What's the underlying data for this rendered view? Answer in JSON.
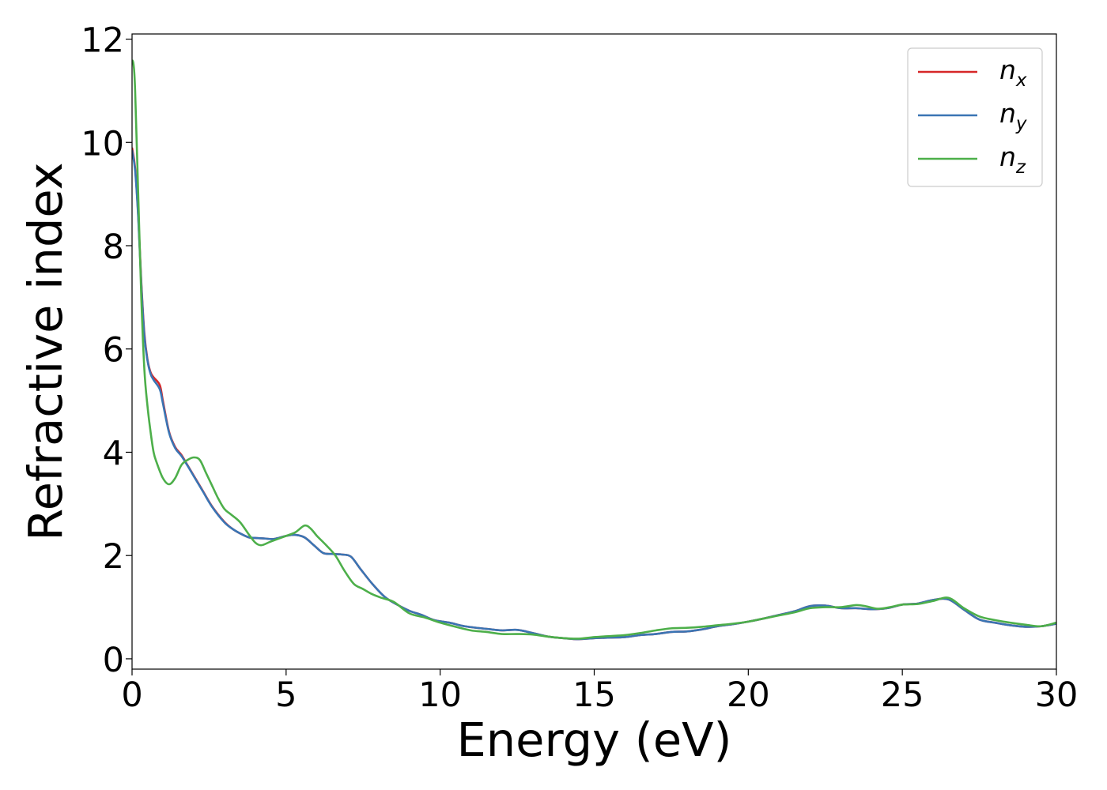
{
  "chart_data": {
    "type": "line",
    "xlabel": "Energy (eV)",
    "ylabel": "Refractive index",
    "xlim": [
      0,
      30
    ],
    "ylim": [
      -0.2,
      12.1
    ],
    "xticks": [
      "0",
      "5",
      "10",
      "15",
      "20",
      "25",
      "30"
    ],
    "yticks": [
      "0",
      "2",
      "4",
      "6",
      "8",
      "10",
      "12"
    ],
    "grid": false,
    "legend_position": "top-right",
    "series": [
      {
        "name": "n_x",
        "legend_base": "n",
        "legend_sub": "x",
        "color": "#d62728",
        "x": [
          0,
          0.1,
          0.2,
          0.3,
          0.4,
          0.5,
          0.6,
          0.7,
          0.9,
          1.0,
          1.2,
          1.4,
          1.6,
          1.8,
          2.0,
          2.3,
          2.6,
          3.0,
          3.3,
          3.6,
          3.8,
          4.0,
          4.3,
          4.6,
          5.0,
          5.3,
          5.6,
          5.9,
          6.2,
          6.5,
          6.8,
          7.1,
          7.4,
          7.8,
          8.2,
          8.6,
          9.0,
          9.4,
          9.8,
          10.3,
          10.8,
          11.5,
          12.0,
          12.5,
          13.0,
          13.5,
          14.0,
          14.5,
          15.0,
          15.5,
          16.0,
          16.5,
          17.0,
          17.5,
          18.0,
          18.5,
          19.0,
          19.5,
          20.0,
          20.5,
          21.0,
          21.5,
          22.0,
          22.5,
          23.0,
          23.5,
          24.0,
          24.5,
          25.0,
          25.5,
          26.0,
          26.5,
          27.0,
          27.5,
          28.0,
          28.5,
          29.0,
          29.5,
          30.0
        ],
        "y": [
          9.9,
          9.5,
          8.6,
          7.3,
          6.3,
          5.8,
          5.55,
          5.45,
          5.3,
          5.0,
          4.4,
          4.1,
          3.95,
          3.75,
          3.55,
          3.25,
          2.95,
          2.65,
          2.5,
          2.4,
          2.35,
          2.34,
          2.33,
          2.32,
          2.38,
          2.4,
          2.35,
          2.2,
          2.05,
          2.03,
          2.02,
          1.98,
          1.75,
          1.45,
          1.2,
          1.05,
          0.93,
          0.85,
          0.75,
          0.7,
          0.63,
          0.58,
          0.55,
          0.56,
          0.5,
          0.43,
          0.4,
          0.38,
          0.4,
          0.41,
          0.42,
          0.46,
          0.48,
          0.52,
          0.53,
          0.57,
          0.63,
          0.67,
          0.72,
          0.78,
          0.85,
          0.92,
          1.02,
          1.03,
          0.98,
          0.98,
          0.96,
          0.98,
          1.05,
          1.07,
          1.14,
          1.15,
          0.95,
          0.76,
          0.7,
          0.65,
          0.62,
          0.63,
          0.68
        ]
      },
      {
        "name": "n_y",
        "legend_base": "n",
        "legend_sub": "y",
        "color": "#3a75b4",
        "x": [
          0,
          0.1,
          0.2,
          0.3,
          0.4,
          0.5,
          0.6,
          0.7,
          0.9,
          1.0,
          1.2,
          1.4,
          1.6,
          1.8,
          2.0,
          2.3,
          2.6,
          3.0,
          3.3,
          3.6,
          3.8,
          4.0,
          4.3,
          4.6,
          5.0,
          5.3,
          5.6,
          5.9,
          6.2,
          6.5,
          6.8,
          7.1,
          7.4,
          7.8,
          8.2,
          8.6,
          9.0,
          9.4,
          9.8,
          10.3,
          10.8,
          11.5,
          12.0,
          12.5,
          13.0,
          13.5,
          14.0,
          14.5,
          15.0,
          15.5,
          16.0,
          16.5,
          17.0,
          17.5,
          18.0,
          18.5,
          19.0,
          19.5,
          20.0,
          20.5,
          21.0,
          21.5,
          22.0,
          22.5,
          23.0,
          23.5,
          24.0,
          24.5,
          25.0,
          25.5,
          26.0,
          26.5,
          27.0,
          27.5,
          28.0,
          28.5,
          29.0,
          29.5,
          30.0
        ],
        "y": [
          9.85,
          9.45,
          8.55,
          7.25,
          6.25,
          5.78,
          5.52,
          5.4,
          5.22,
          4.95,
          4.38,
          4.08,
          3.93,
          3.74,
          3.54,
          3.24,
          2.94,
          2.64,
          2.5,
          2.4,
          2.35,
          2.34,
          2.33,
          2.32,
          2.38,
          2.4,
          2.35,
          2.2,
          2.05,
          2.03,
          2.02,
          1.98,
          1.75,
          1.45,
          1.2,
          1.05,
          0.93,
          0.85,
          0.75,
          0.7,
          0.63,
          0.58,
          0.55,
          0.56,
          0.5,
          0.43,
          0.4,
          0.38,
          0.4,
          0.41,
          0.42,
          0.46,
          0.48,
          0.52,
          0.53,
          0.57,
          0.63,
          0.67,
          0.72,
          0.78,
          0.85,
          0.92,
          1.02,
          1.03,
          0.98,
          0.98,
          0.96,
          0.98,
          1.05,
          1.07,
          1.14,
          1.15,
          0.95,
          0.76,
          0.7,
          0.65,
          0.62,
          0.63,
          0.68
        ]
      },
      {
        "name": "n_z",
        "legend_base": "n",
        "legend_sub": "z",
        "color": "#4daf4a",
        "x": [
          0,
          0.05,
          0.1,
          0.2,
          0.3,
          0.4,
          0.5,
          0.6,
          0.7,
          0.8,
          1.0,
          1.2,
          1.4,
          1.6,
          1.8,
          2.0,
          2.2,
          2.4,
          2.6,
          2.8,
          3.0,
          3.2,
          3.5,
          3.8,
          4.0,
          4.2,
          4.5,
          5.0,
          5.3,
          5.6,
          5.8,
          6.0,
          6.3,
          6.6,
          6.9,
          7.2,
          7.5,
          7.8,
          8.1,
          8.5,
          9.0,
          9.5,
          10.0,
          10.5,
          11.0,
          11.5,
          12.0,
          12.5,
          13.0,
          13.5,
          14.0,
          14.5,
          15.0,
          15.5,
          16.0,
          16.5,
          17.0,
          17.5,
          18.0,
          18.5,
          19.0,
          19.5,
          20.0,
          20.5,
          21.0,
          21.5,
          22.0,
          22.5,
          23.0,
          23.5,
          23.8,
          24.2,
          24.6,
          25.0,
          25.5,
          26.0,
          26.5,
          27.0,
          27.5,
          28.0,
          28.5,
          29.0,
          29.5,
          30.0
        ],
        "y": [
          11.6,
          11.5,
          11.0,
          9.0,
          7.0,
          5.6,
          4.9,
          4.4,
          4.0,
          3.8,
          3.5,
          3.38,
          3.5,
          3.75,
          3.85,
          3.9,
          3.85,
          3.6,
          3.35,
          3.1,
          2.9,
          2.8,
          2.65,
          2.4,
          2.25,
          2.2,
          2.27,
          2.38,
          2.45,
          2.58,
          2.52,
          2.38,
          2.2,
          2.0,
          1.7,
          1.45,
          1.35,
          1.25,
          1.18,
          1.1,
          0.88,
          0.8,
          0.7,
          0.62,
          0.55,
          0.52,
          0.48,
          0.48,
          0.47,
          0.43,
          0.4,
          0.39,
          0.42,
          0.44,
          0.46,
          0.5,
          0.55,
          0.59,
          0.6,
          0.62,
          0.65,
          0.68,
          0.72,
          0.78,
          0.84,
          0.9,
          0.98,
          1.0,
          1.0,
          1.04,
          1.02,
          0.97,
          1.0,
          1.05,
          1.06,
          1.12,
          1.18,
          0.98,
          0.82,
          0.75,
          0.7,
          0.66,
          0.63,
          0.7
        ]
      }
    ]
  }
}
